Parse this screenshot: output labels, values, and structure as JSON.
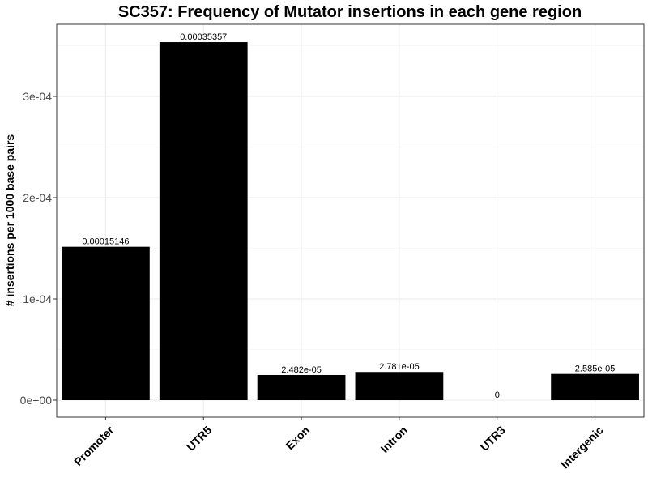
{
  "chart_data": {
    "type": "bar",
    "title": "SC357: Frequency of Mutator insertions in each gene region",
    "xlabel": "",
    "ylabel": "# insertions per 1000 base pairs",
    "categories": [
      "Promoter",
      "UTR5",
      "Exon",
      "Intron",
      "UTR3",
      "Intergenic"
    ],
    "values": [
      0.00015146,
      0.00035357,
      2.482e-05,
      2.781e-05,
      0,
      2.585e-05
    ],
    "data_labels": [
      "0.00015146",
      "0.00035357",
      "2.482e-05",
      "2.781e-05",
      "0",
      "2.585e-05"
    ],
    "ylim": [
      0,
      0.000371
    ],
    "yticks": [
      0,
      0.0001,
      0.0002,
      0.0003
    ],
    "ytick_labels": [
      "0e+00",
      "1e-04",
      "2e-04",
      "3e-04"
    ],
    "bar_color": "#000000",
    "grid": true,
    "legend": "none"
  }
}
